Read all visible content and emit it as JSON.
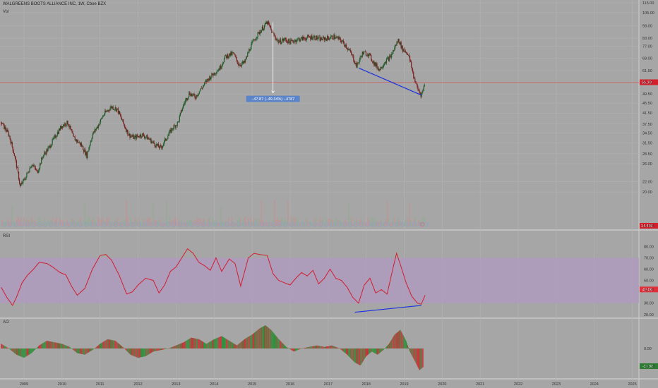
{
  "header": {
    "title": "WALGREENS BOOTS ALLIANCE INC, 1W, Cboe BZX",
    "vol_label": "Vol",
    "rsi_label": "RSI",
    "ao_label": "AO"
  },
  "colors": {
    "background": "#a6a6a6",
    "up": "#1f5c2a",
    "down": "#7a1f1f",
    "rsi_line": "#d11f2e",
    "rsi_band": "#b09ac0",
    "trendline": "#1a2fe0",
    "price_line": "#d54b4b",
    "badge_price": "#d21f2b",
    "badge_rsi": "#e0303a",
    "badge_ao": "#2e7d32",
    "measure_box": "#5b84c9"
  },
  "chart_data": [
    {
      "type": "candlestick",
      "title": "WALGREENS BOOTS ALLIANCE INC, 1W, Cboe BZX",
      "x": [
        "2009",
        "2010",
        "2011",
        "2012",
        "2013",
        "2014",
        "2015",
        "2016",
        "2017",
        "2018",
        "2019",
        "2020",
        "2021",
        "2022",
        "2023",
        "2024",
        "2025"
      ],
      "y_ticks": [
        "115.00",
        "105.00",
        "93.00",
        "83.00",
        "77.00",
        "69.00",
        "61.50",
        "55.19",
        "49.50",
        "45.50",
        "41.50",
        "37.50",
        "34.50",
        "31.50",
        "28.50",
        "26.00",
        "22.00",
        "20.00",
        "14.636"
      ],
      "scale": "log",
      "ylim": [
        14.636,
        115
      ],
      "last_price": 55.19,
      "volume_last": "14.636",
      "annotation": "−47.87 (−49.34%) −4787",
      "series_path": [
        [
          2008.4,
          38
        ],
        [
          2008.6,
          34
        ],
        [
          2008.75,
          28
        ],
        [
          2008.9,
          21
        ],
        [
          2009.05,
          23
        ],
        [
          2009.2,
          26
        ],
        [
          2009.35,
          24
        ],
        [
          2009.5,
          28
        ],
        [
          2009.65,
          30
        ],
        [
          2009.8,
          33
        ],
        [
          2010.0,
          37
        ],
        [
          2010.15,
          38
        ],
        [
          2010.3,
          33
        ],
        [
          2010.5,
          31
        ],
        [
          2010.65,
          28
        ],
        [
          2010.8,
          34
        ],
        [
          2010.95,
          37
        ],
        [
          2011.1,
          41
        ],
        [
          2011.3,
          44
        ],
        [
          2011.45,
          43
        ],
        [
          2011.6,
          38
        ],
        [
          2011.75,
          34
        ],
        [
          2011.9,
          33
        ],
        [
          2012.1,
          34
        ],
        [
          2012.25,
          33
        ],
        [
          2012.45,
          31
        ],
        [
          2012.6,
          30
        ],
        [
          2012.75,
          33
        ],
        [
          2012.9,
          36
        ],
        [
          2013.05,
          38
        ],
        [
          2013.2,
          45
        ],
        [
          2013.35,
          50
        ],
        [
          2013.5,
          48
        ],
        [
          2013.7,
          53
        ],
        [
          2013.85,
          57
        ],
        [
          2014.0,
          60
        ],
        [
          2014.15,
          63
        ],
        [
          2014.3,
          70
        ],
        [
          2014.5,
          72
        ],
        [
          2014.65,
          65
        ],
        [
          2014.8,
          66
        ],
        [
          2014.95,
          76
        ],
        [
          2015.1,
          84
        ],
        [
          2015.25,
          90
        ],
        [
          2015.4,
          96
        ],
        [
          2015.55,
          86
        ],
        [
          2015.7,
          80
        ],
        [
          2015.85,
          82
        ],
        [
          2016.0,
          80
        ],
        [
          2016.2,
          82
        ],
        [
          2016.4,
          83
        ],
        [
          2016.6,
          84
        ],
        [
          2016.8,
          82
        ],
        [
          2017.0,
          83
        ],
        [
          2017.15,
          84
        ],
        [
          2017.3,
          82
        ],
        [
          2017.45,
          78
        ],
        [
          2017.6,
          72
        ],
        [
          2017.75,
          64
        ],
        [
          2017.9,
          72
        ],
        [
          2018.05,
          72
        ],
        [
          2018.2,
          66
        ],
        [
          2018.35,
          62
        ],
        [
          2018.5,
          67
        ],
        [
          2018.65,
          70
        ],
        [
          2018.85,
          82
        ],
        [
          2018.95,
          75
        ],
        [
          2019.1,
          72
        ],
        [
          2019.25,
          58
        ],
        [
          2019.35,
          52
        ],
        [
          2019.45,
          49
        ],
        [
          2019.55,
          55
        ]
      ],
      "trendline": [
        [
          2017.8,
          63
        ],
        [
          2019.45,
          49
        ]
      ]
    },
    {
      "type": "line",
      "title": "RSI",
      "y_ticks": [
        "80.00",
        "70.00",
        "60.00",
        "50.00",
        "42.09",
        "30.00",
        "20.00"
      ],
      "ylim": [
        18,
        84
      ],
      "band": [
        30,
        70
      ],
      "last_value": 42.09,
      "series": [
        {
          "name": "RSI",
          "values": [
            [
              2008.4,
              44
            ],
            [
              2008.55,
              35
            ],
            [
              2008.7,
              28
            ],
            [
              2008.8,
              35
            ],
            [
              2008.95,
              48
            ],
            [
              2009.1,
              55
            ],
            [
              2009.25,
              60
            ],
            [
              2009.4,
              66
            ],
            [
              2009.6,
              65
            ],
            [
              2009.75,
              62
            ],
            [
              2009.95,
              57
            ],
            [
              2010.1,
              55
            ],
            [
              2010.25,
              45
            ],
            [
              2010.4,
              37
            ],
            [
              2010.6,
              43
            ],
            [
              2010.8,
              60
            ],
            [
              2011.0,
              72
            ],
            [
              2011.15,
              73
            ],
            [
              2011.3,
              68
            ],
            [
              2011.5,
              55
            ],
            [
              2011.7,
              38
            ],
            [
              2011.85,
              40
            ],
            [
              2012.0,
              46
            ],
            [
              2012.2,
              52
            ],
            [
              2012.4,
              50
            ],
            [
              2012.55,
              39
            ],
            [
              2012.7,
              46
            ],
            [
              2012.85,
              58
            ],
            [
              2013.0,
              62
            ],
            [
              2013.15,
              70
            ],
            [
              2013.3,
              78
            ],
            [
              2013.45,
              74
            ],
            [
              2013.6,
              66
            ],
            [
              2013.75,
              63
            ],
            [
              2013.9,
              59
            ],
            [
              2014.05,
              70
            ],
            [
              2014.2,
              58
            ],
            [
              2014.4,
              69
            ],
            [
              2014.55,
              65
            ],
            [
              2014.7,
              45
            ],
            [
              2014.9,
              70
            ],
            [
              2015.05,
              74
            ],
            [
              2015.2,
              73
            ],
            [
              2015.4,
              72
            ],
            [
              2015.55,
              56
            ],
            [
              2015.7,
              50
            ],
            [
              2015.85,
              48
            ],
            [
              2016.0,
              46
            ],
            [
              2016.15,
              52
            ],
            [
              2016.3,
              57
            ],
            [
              2016.45,
              54
            ],
            [
              2016.6,
              59
            ],
            [
              2016.75,
              47
            ],
            [
              2016.9,
              52
            ],
            [
              2017.05,
              60
            ],
            [
              2017.2,
              52
            ],
            [
              2017.35,
              50
            ],
            [
              2017.5,
              44
            ],
            [
              2017.65,
              35
            ],
            [
              2017.8,
              30
            ],
            [
              2017.95,
              46
            ],
            [
              2018.1,
              52
            ],
            [
              2018.25,
              39
            ],
            [
              2018.4,
              42
            ],
            [
              2018.55,
              38
            ],
            [
              2018.7,
              60
            ],
            [
              2018.8,
              74
            ],
            [
              2018.9,
              64
            ],
            [
              2019.05,
              48
            ],
            [
              2019.2,
              36
            ],
            [
              2019.35,
              30
            ],
            [
              2019.45,
              29
            ],
            [
              2019.55,
              37
            ]
          ]
        }
      ],
      "trendline": [
        [
          2017.7,
          22
        ],
        [
          2019.45,
          28
        ]
      ]
    },
    {
      "type": "bar",
      "title": "AO",
      "y_ticks": [
        "0.00",
        "-11.38"
      ],
      "last_value": -11.38,
      "series": [
        {
          "name": "AO",
          "values": [
            [
              2008.4,
              3
            ],
            [
              2008.6,
              0
            ],
            [
              2008.8,
              -4
            ],
            [
              2009.0,
              -6
            ],
            [
              2009.2,
              -3
            ],
            [
              2009.4,
              2
            ],
            [
              2009.6,
              5
            ],
            [
              2009.8,
              4
            ],
            [
              2010.0,
              3
            ],
            [
              2010.2,
              1
            ],
            [
              2010.4,
              -3
            ],
            [
              2010.6,
              -4
            ],
            [
              2010.8,
              -1
            ],
            [
              2011.0,
              3
            ],
            [
              2011.2,
              6
            ],
            [
              2011.4,
              5
            ],
            [
              2011.6,
              1
            ],
            [
              2011.8,
              -4
            ],
            [
              2012.0,
              -6
            ],
            [
              2012.2,
              -5
            ],
            [
              2012.4,
              -2
            ],
            [
              2012.6,
              -1
            ],
            [
              2012.8,
              0
            ],
            [
              2013.0,
              2
            ],
            [
              2013.2,
              4
            ],
            [
              2013.4,
              7
            ],
            [
              2013.6,
              6
            ],
            [
              2013.8,
              3
            ],
            [
              2014.0,
              6
            ],
            [
              2014.2,
              8
            ],
            [
              2014.4,
              5
            ],
            [
              2014.6,
              2
            ],
            [
              2014.8,
              6
            ],
            [
              2015.0,
              9
            ],
            [
              2015.2,
              13
            ],
            [
              2015.35,
              15
            ],
            [
              2015.5,
              12
            ],
            [
              2015.7,
              6
            ],
            [
              2015.9,
              1
            ],
            [
              2016.1,
              -2
            ],
            [
              2016.3,
              0
            ],
            [
              2016.5,
              1
            ],
            [
              2016.7,
              2
            ],
            [
              2016.9,
              1
            ],
            [
              2017.1,
              2
            ],
            [
              2017.3,
              0
            ],
            [
              2017.5,
              -4
            ],
            [
              2017.7,
              -9
            ],
            [
              2017.85,
              -11
            ],
            [
              2018.0,
              -5
            ],
            [
              2018.15,
              -2
            ],
            [
              2018.3,
              -4
            ],
            [
              2018.45,
              -1
            ],
            [
              2018.6,
              3
            ],
            [
              2018.75,
              9
            ],
            [
              2018.9,
              12
            ],
            [
              2019.05,
              5
            ],
            [
              2019.15,
              -2
            ],
            [
              2019.3,
              -9
            ],
            [
              2019.4,
              -14
            ],
            [
              2019.5,
              -12
            ]
          ]
        }
      ]
    }
  ]
}
